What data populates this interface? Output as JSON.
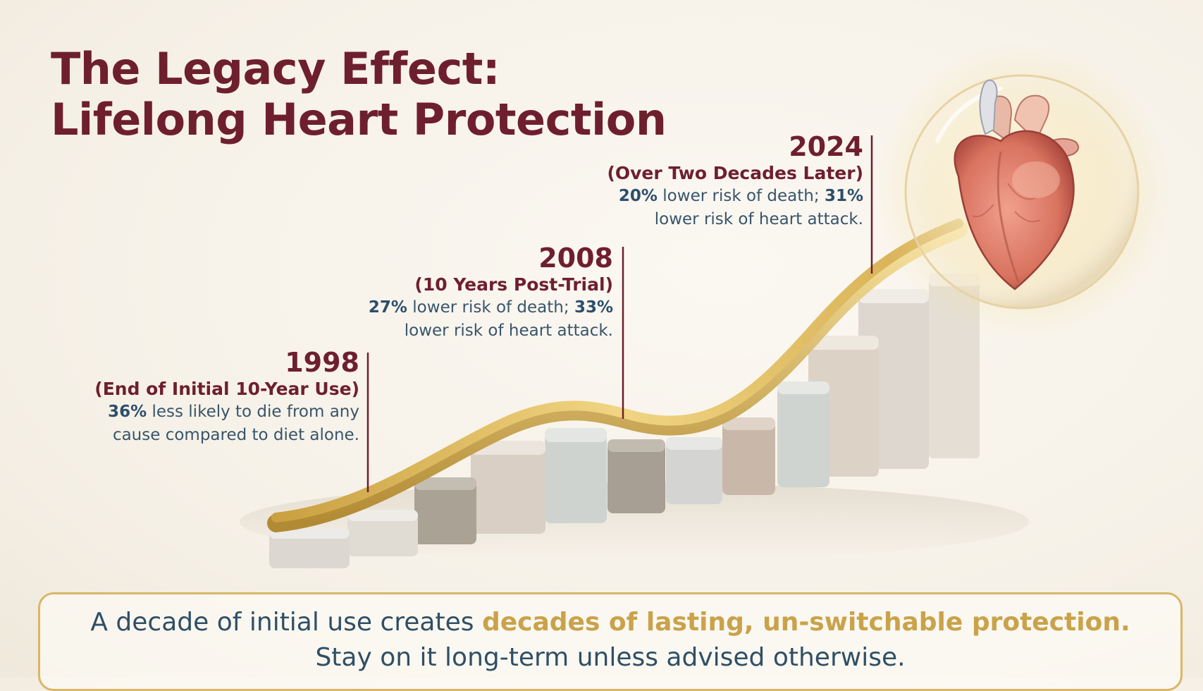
{
  "title": {
    "line1": "The Legacy Effect:",
    "line2": "Lifelong Heart Protection"
  },
  "milestones": [
    {
      "year": "1998",
      "subtitle": "(End of Initial 10-Year Use)",
      "stat": "36%",
      "text1_rest": " less likely to die from any",
      "text2": "cause compared to diet alone."
    },
    {
      "year": "2008",
      "subtitle": "(10 Years Post-Trial)",
      "stat1": "27%",
      "text1_mid": " lower risk of death; ",
      "stat2": "33%",
      "text2": "lower risk of heart attack."
    },
    {
      "year": "2024",
      "subtitle": "(Over Two Decades Later)",
      "stat1": "20%",
      "text1_mid": " lower risk of death; ",
      "stat2": "31%",
      "text2": "lower risk of heart attack."
    }
  ],
  "footer": {
    "line1_start": "A decade of initial use creates ",
    "line1_highlight": "decades of lasting, un-switchable protection.",
    "line2": "Stay on it long-term unless advised otherwise."
  },
  "colors": {
    "title": "#6e1f2e",
    "text": "#2f4f66",
    "gold": "#d9b667"
  },
  "icons": {
    "heart": "anatomical-heart-icon",
    "curve": "gold-ribbon-curve"
  }
}
